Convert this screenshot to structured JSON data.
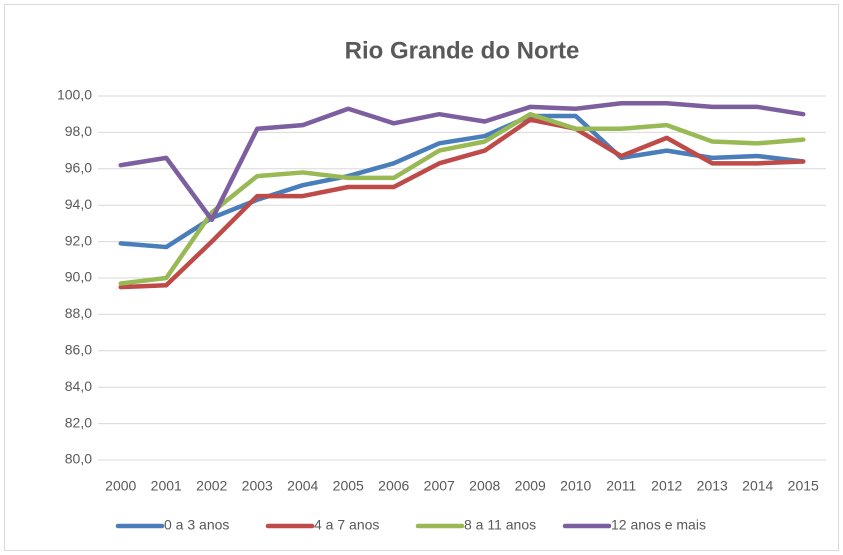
{
  "chart_data": {
    "type": "line",
    "title": "Rio Grande do Norte",
    "categories": [
      "2000",
      "2001",
      "2002",
      "2003",
      "2004",
      "2005",
      "2006",
      "2007",
      "2008",
      "2009",
      "2010",
      "2011",
      "2012",
      "2013",
      "2014",
      "2015"
    ],
    "series": [
      {
        "name": "0 a 3 anos",
        "color": "#4a7ebb",
        "values": [
          91.9,
          91.7,
          93.3,
          94.3,
          95.1,
          95.6,
          96.3,
          97.4,
          97.8,
          98.9,
          98.9,
          96.6,
          97.0,
          96.6,
          96.7,
          96.4
        ]
      },
      {
        "name": "4 a 7 anos",
        "color": "#be4b48",
        "values": [
          89.5,
          89.6,
          92.0,
          94.5,
          94.5,
          95.0,
          95.0,
          96.3,
          97.0,
          98.7,
          98.2,
          96.7,
          97.7,
          96.3,
          96.3,
          96.4
        ]
      },
      {
        "name": "8 a 11 anos",
        "color": "#98b954",
        "values": [
          89.7,
          90.0,
          93.6,
          95.6,
          95.8,
          95.5,
          95.5,
          97.0,
          97.5,
          99.0,
          98.2,
          98.2,
          98.4,
          97.5,
          97.4,
          97.6
        ]
      },
      {
        "name": "12 anos e mais",
        "color": "#7d5fa0",
        "values": [
          96.2,
          96.6,
          93.2,
          98.2,
          98.4,
          99.3,
          98.5,
          99.0,
          98.6,
          99.4,
          99.3,
          99.6,
          99.6,
          99.4,
          99.4,
          99.0
        ]
      }
    ],
    "ylim": [
      80,
      100
    ],
    "yticks": [
      {
        "value": 80,
        "label": "80,0"
      },
      {
        "value": 82,
        "label": "82,0"
      },
      {
        "value": 84,
        "label": "84,0"
      },
      {
        "value": 86,
        "label": "86,0"
      },
      {
        "value": 88,
        "label": "88,0"
      },
      {
        "value": 90,
        "label": "90,0"
      },
      {
        "value": 92,
        "label": "92,0"
      },
      {
        "value": 94,
        "label": "94,0"
      },
      {
        "value": 96,
        "label": "96,0"
      },
      {
        "value": 98,
        "label": "98,0"
      },
      {
        "value": 100,
        "label": "100,0"
      }
    ],
    "grid": true,
    "legend": "bottom"
  }
}
